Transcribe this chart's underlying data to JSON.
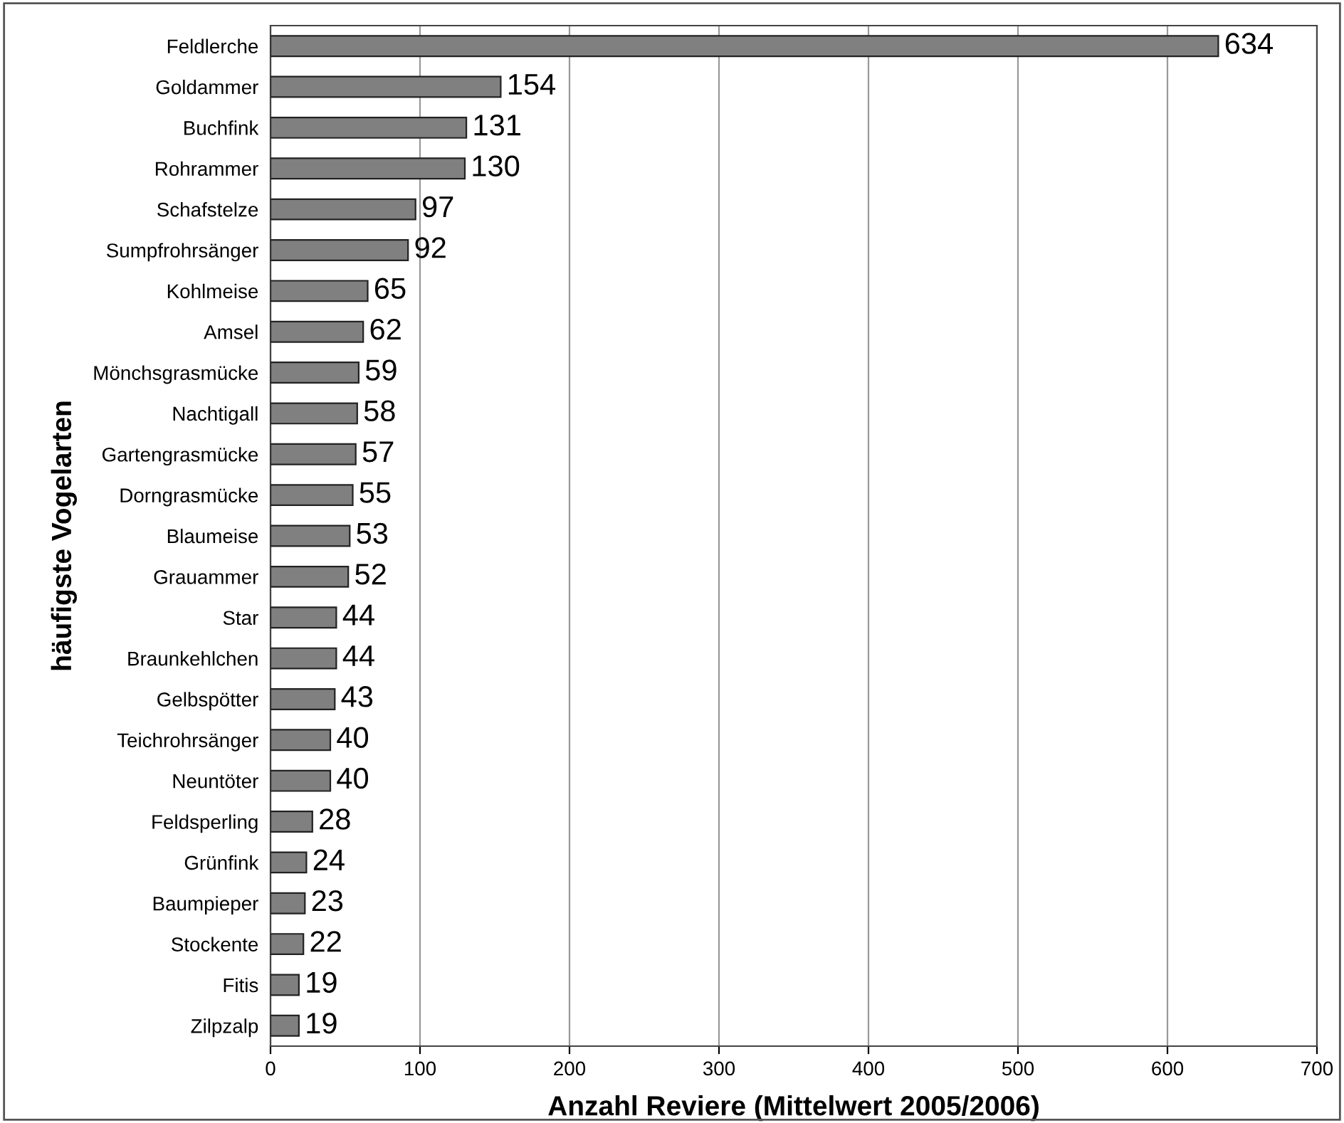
{
  "chart_data": {
    "type": "bar",
    "orientation": "horizontal",
    "xlabel": "Anzahl Reviere (Mittelwert 2005/2006)",
    "ylabel": "häufigste Vogelarten",
    "categories": [
      "Feldlerche",
      "Goldammer",
      "Buchfink",
      "Rohrammer",
      "Schafstelze",
      "Sumpfrohrsänger",
      "Kohlmeise",
      "Amsel",
      "Mönchsgrasmücke",
      "Nachtigall",
      "Gartengrasmücke",
      "Dorngrasmücke",
      "Blaumeise",
      "Grauammer",
      "Star",
      "Braunkehlchen",
      "Gelbspötter",
      "Teichrohrsänger",
      "Neuntöter",
      "Feldsperling",
      "Grünfink",
      "Baumpieper",
      "Stockente",
      "Fitis",
      "Zilpzalp"
    ],
    "values": [
      634,
      154,
      131,
      130,
      97,
      92,
      65,
      62,
      59,
      58,
      57,
      55,
      53,
      52,
      44,
      44,
      43,
      40,
      40,
      28,
      24,
      23,
      22,
      19,
      19
    ],
    "color": "#808080",
    "xlim": [
      0,
      700
    ],
    "xticks": [
      0,
      100,
      200,
      300,
      400,
      500,
      600,
      700
    ],
    "grid": "x",
    "data_labels": true
  }
}
